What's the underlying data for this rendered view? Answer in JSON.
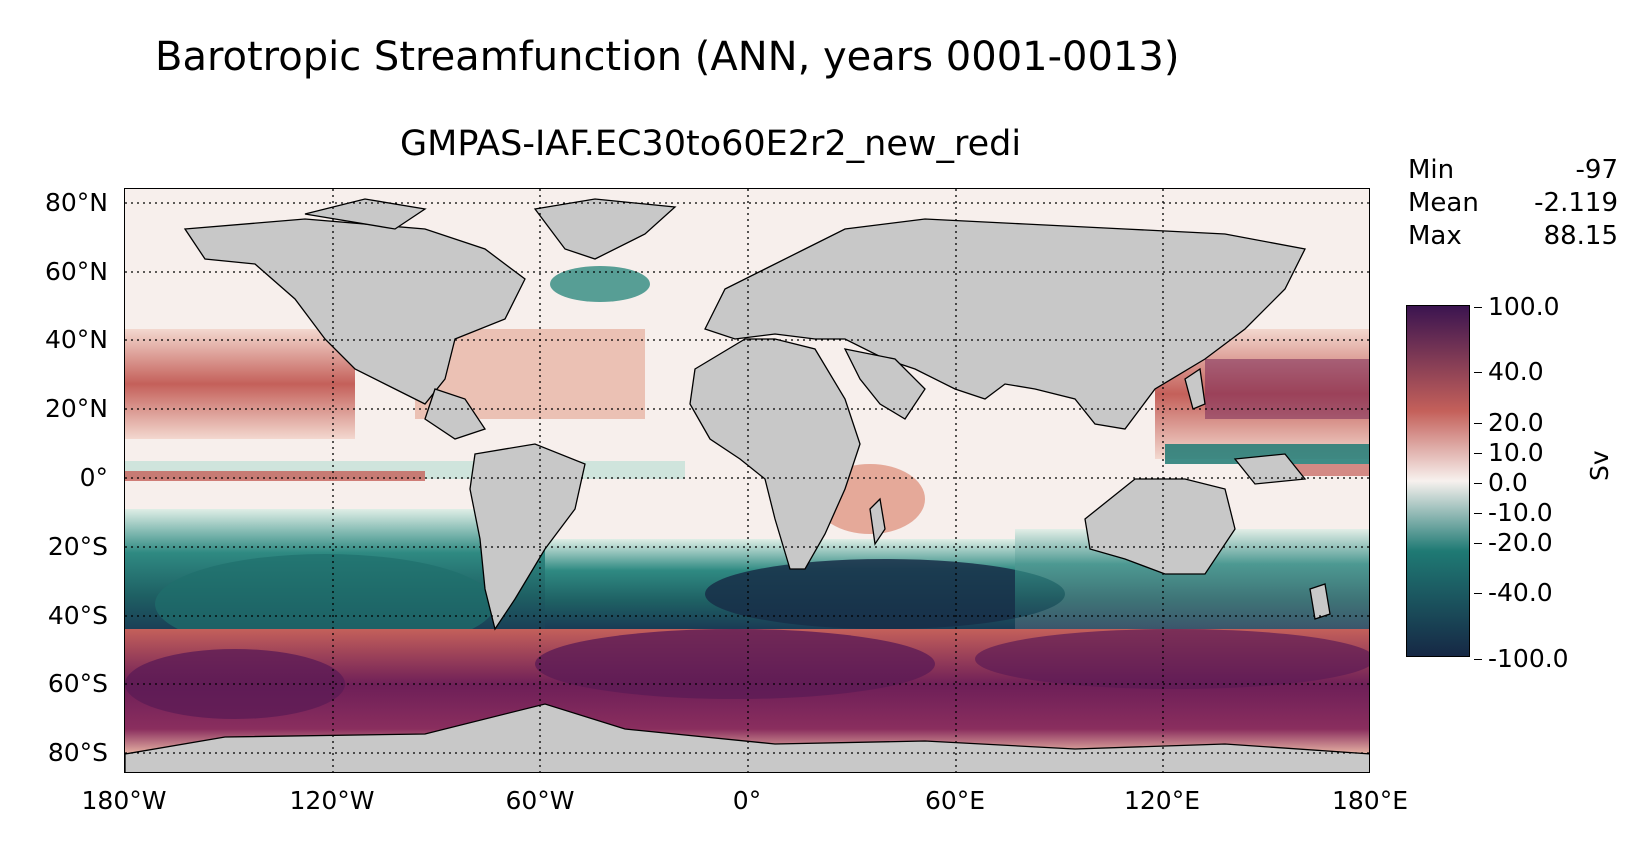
{
  "title": "Barotropic Streamfunction (ANN, years 0001-0013)",
  "subtitle": "GMPAS-IAF.EC30to60E2r2_new_redi",
  "stats": [
    {
      "label": "Min",
      "value": "-97"
    },
    {
      "label": "Mean",
      "value": "-2.119"
    },
    {
      "label": "Max",
      "value": "88.15"
    }
  ],
  "map": {
    "projection": "PlateCarree",
    "lon_range": [
      -180,
      180
    ],
    "lat_range": [
      -85,
      85
    ],
    "land_color": "#c8c8c8",
    "grid": "dotted",
    "lat_ticks": [
      "80°N",
      "60°N",
      "40°N",
      "20°N",
      "0°",
      "20°S",
      "40°S",
      "60°S",
      "80°S"
    ],
    "lon_ticks": [
      "180°W",
      "120°W",
      "60°W",
      "0°",
      "60°E",
      "120°E",
      "180°E"
    ]
  },
  "colorbar": {
    "colormap": "cmocean.curl",
    "unit": "Sv",
    "ticks": [
      "100.0",
      "40.0",
      "20.0",
      "10.0",
      "0.0",
      "-10.0",
      "-20.0",
      "-40.0",
      "-100.0"
    ],
    "colors": {
      "top": "#3b1450",
      "mid_pos": "#c4605a",
      "zero": "#f7f1ee",
      "mid_neg": "#1f7a74",
      "bottom": "#162845"
    }
  }
}
